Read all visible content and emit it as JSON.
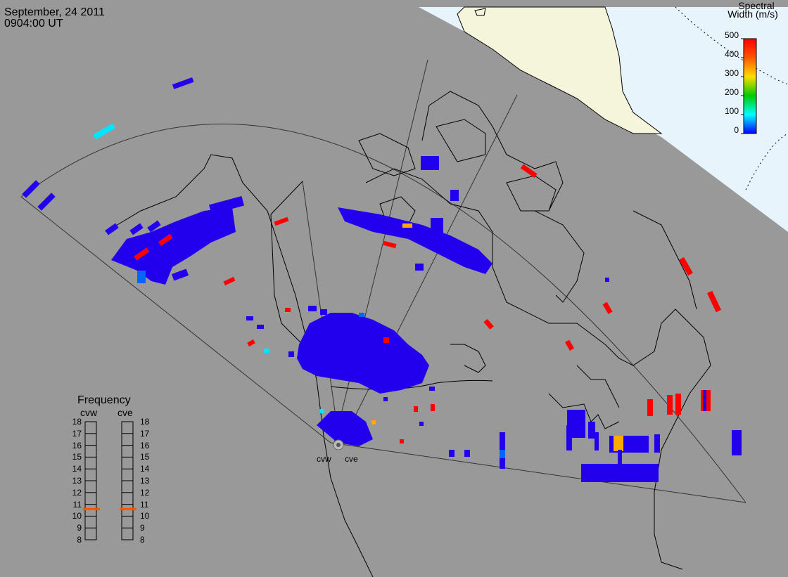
{
  "header": {
    "date": "September, 24 2011",
    "time": "0904:00 UT"
  },
  "colorbar": {
    "title_line1": "Spectral",
    "title_line2": "Width (m/s)",
    "ticks": [
      "500",
      "400",
      "300",
      "200",
      "100",
      "0"
    ],
    "colors": [
      "#ff0000",
      "#ff9900",
      "#ffff00",
      "#00cc00",
      "#00ffff",
      "#0000ff"
    ]
  },
  "radars": {
    "cvw_label": "cvw",
    "cve_label": "cve"
  },
  "frequency": {
    "title": "Frequency",
    "col_left": "cvw",
    "col_right": "cve",
    "ticks": [
      "18",
      "17",
      "16",
      "15",
      "14",
      "13",
      "12",
      "11",
      "10",
      "9",
      "8"
    ],
    "cvw_mhz": 10.6,
    "cve_mhz": 10.6,
    "marker_color": "#ff5500"
  },
  "colors": {
    "background": "#999999",
    "daylight_land": "#f5f5dc",
    "daylight_sea": "#e8f4fb",
    "scatter_main": "#2200ee",
    "scatter_red": "#ff0000",
    "scatter_cyan": "#00e5ff",
    "scatter_orange": "#ffaa00"
  }
}
